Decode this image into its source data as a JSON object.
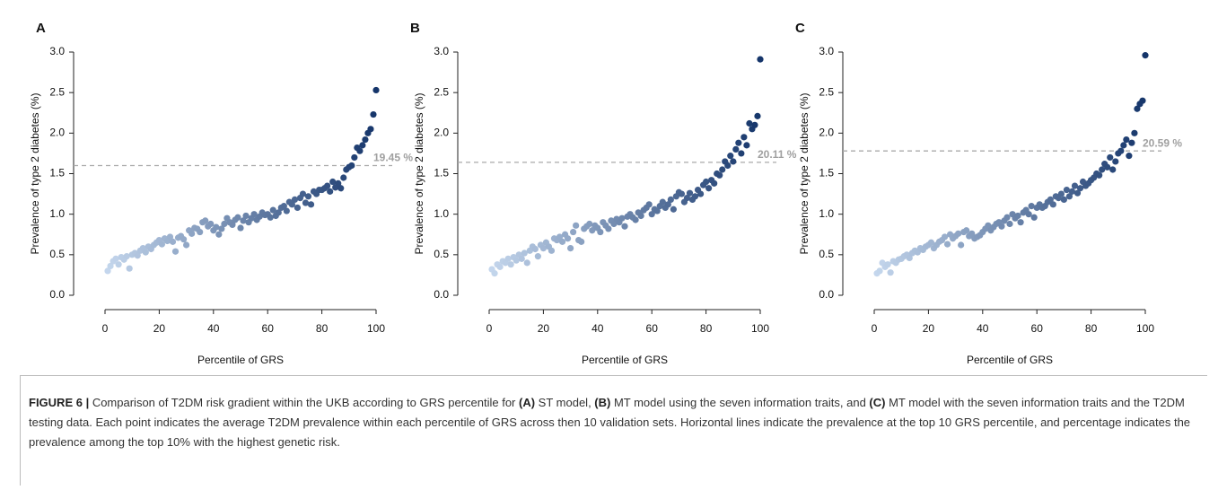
{
  "chart_data": [
    {
      "type": "scatter",
      "panel_label": "A",
      "xlabel": "Percentile of GRS",
      "ylabel": "Prevalence of type 2 diabetes (%)",
      "xlim": [
        0,
        100
      ],
      "ylim": [
        0,
        3
      ],
      "xticks": [
        0,
        20,
        40,
        60,
        80,
        100
      ],
      "yticks": [
        {
          "value": 0,
          "label": "0.0"
        },
        0.5,
        {
          "value": 1,
          "label": "1.0"
        },
        1.5,
        {
          "value": 2,
          "label": "2.0"
        },
        2.5,
        {
          "value": 3,
          "label": "3.0"
        }
      ],
      "color_scale": [
        "#c6d8ee",
        "#15356a"
      ],
      "reference_y": 1.6,
      "reference_label": "19.45 %",
      "x": [
        1,
        2,
        3,
        4,
        5,
        6,
        7,
        8,
        9,
        10,
        11,
        12,
        13,
        14,
        15,
        16,
        17,
        18,
        19,
        20,
        21,
        22,
        23,
        24,
        25,
        26,
        27,
        28,
        29,
        30,
        31,
        32,
        33,
        34,
        35,
        36,
        37,
        38,
        39,
        40,
        41,
        42,
        43,
        44,
        45,
        46,
        47,
        48,
        49,
        50,
        51,
        52,
        53,
        54,
        55,
        56,
        57,
        58,
        59,
        60,
        61,
        62,
        63,
        64,
        65,
        66,
        67,
        68,
        69,
        70,
        71,
        72,
        73,
        74,
        75,
        76,
        77,
        78,
        79,
        80,
        81,
        82,
        83,
        84,
        85,
        86,
        87,
        88,
        89,
        90,
        91,
        92,
        93,
        94,
        95,
        96,
        97,
        98,
        99,
        100
      ],
      "values": [
        0.3,
        0.36,
        0.42,
        0.45,
        0.38,
        0.47,
        0.44,
        0.48,
        0.33,
        0.5,
        0.52,
        0.49,
        0.55,
        0.58,
        0.53,
        0.6,
        0.57,
        0.62,
        0.65,
        0.68,
        0.63,
        0.7,
        0.67,
        0.72,
        0.66,
        0.54,
        0.71,
        0.73,
        0.69,
        0.62,
        0.8,
        0.76,
        0.83,
        0.82,
        0.78,
        0.9,
        0.92,
        0.85,
        0.88,
        0.8,
        0.84,
        0.75,
        0.82,
        0.88,
        0.95,
        0.9,
        0.87,
        0.93,
        0.96,
        0.83,
        0.92,
        0.98,
        0.9,
        0.95,
        1.0,
        0.93,
        0.97,
        1.02,
        0.99,
        1.0,
        0.96,
        1.05,
        0.98,
        1.02,
        1.08,
        1.1,
        1.04,
        1.15,
        1.12,
        1.18,
        1.08,
        1.2,
        1.25,
        1.14,
        1.22,
        1.12,
        1.28,
        1.25,
        1.3,
        1.3,
        1.32,
        1.35,
        1.28,
        1.4,
        1.33,
        1.38,
        1.32,
        1.45,
        1.55,
        1.58,
        1.6,
        1.7,
        1.82,
        1.78,
        1.85,
        1.92,
        2.0,
        2.05,
        2.23,
        2.53
      ]
    },
    {
      "type": "scatter",
      "panel_label": "B",
      "xlabel": "Percentile of GRS",
      "ylabel": "Prevalence of type 2 diabetes (%)",
      "xlim": [
        0,
        100
      ],
      "ylim": [
        0,
        3
      ],
      "xticks": [
        0,
        20,
        40,
        60,
        80,
        100
      ],
      "yticks": [
        {
          "value": 0,
          "label": "0.0"
        },
        0.5,
        {
          "value": 1,
          "label": "1.0"
        },
        1.5,
        {
          "value": 2,
          "label": "2.0"
        },
        2.5,
        {
          "value": 3,
          "label": "3.0"
        }
      ],
      "color_scale": [
        "#c6d8ee",
        "#15356a"
      ],
      "reference_y": 1.64,
      "reference_label": "20.11 %",
      "x": [
        1,
        2,
        3,
        4,
        5,
        6,
        7,
        8,
        9,
        10,
        11,
        12,
        13,
        14,
        15,
        16,
        17,
        18,
        19,
        20,
        21,
        22,
        23,
        24,
        25,
        26,
        27,
        28,
        29,
        30,
        31,
        32,
        33,
        34,
        35,
        36,
        37,
        38,
        39,
        40,
        41,
        42,
        43,
        44,
        45,
        46,
        47,
        48,
        49,
        50,
        51,
        52,
        53,
        54,
        55,
        56,
        57,
        58,
        59,
        60,
        61,
        62,
        63,
        64,
        65,
        66,
        67,
        68,
        69,
        70,
        71,
        72,
        73,
        74,
        75,
        76,
        77,
        78,
        79,
        80,
        81,
        82,
        83,
        84,
        85,
        86,
        87,
        88,
        89,
        90,
        91,
        92,
        93,
        94,
        95,
        96,
        97,
        98,
        99,
        100
      ],
      "values": [
        0.32,
        0.27,
        0.38,
        0.35,
        0.42,
        0.4,
        0.45,
        0.38,
        0.47,
        0.43,
        0.5,
        0.45,
        0.52,
        0.4,
        0.55,
        0.6,
        0.57,
        0.48,
        0.62,
        0.58,
        0.65,
        0.6,
        0.55,
        0.7,
        0.68,
        0.72,
        0.66,
        0.75,
        0.7,
        0.58,
        0.78,
        0.86,
        0.68,
        0.66,
        0.82,
        0.85,
        0.88,
        0.8,
        0.86,
        0.83,
        0.78,
        0.9,
        0.86,
        0.82,
        0.92,
        0.88,
        0.94,
        0.9,
        0.95,
        0.85,
        0.97,
        1.0,
        0.96,
        0.93,
        1.02,
        0.98,
        1.05,
        1.08,
        1.12,
        1.0,
        1.06,
        1.04,
        1.1,
        1.15,
        1.08,
        1.12,
        1.18,
        1.06,
        1.22,
        1.27,
        1.25,
        1.15,
        1.2,
        1.26,
        1.18,
        1.22,
        1.3,
        1.25,
        1.36,
        1.4,
        1.32,
        1.42,
        1.38,
        1.5,
        1.48,
        1.55,
        1.65,
        1.6,
        1.72,
        1.65,
        1.8,
        1.88,
        1.75,
        1.95,
        1.85,
        2.12,
        2.05,
        2.1,
        2.21,
        2.91
      ]
    },
    {
      "type": "scatter",
      "panel_label": "C",
      "xlabel": "Percentile of GRS",
      "ylabel": "Prevalence of type 2 diabetes (%)",
      "xlim": [
        0,
        100
      ],
      "ylim": [
        0,
        3
      ],
      "xticks": [
        0,
        20,
        40,
        60,
        80,
        100
      ],
      "yticks": [
        {
          "value": 0,
          "label": "0.0"
        },
        0.5,
        {
          "value": 1,
          "label": "1.0"
        },
        1.5,
        {
          "value": 2,
          "label": "2.0"
        },
        2.5,
        {
          "value": 3,
          "label": "3.0"
        }
      ],
      "color_scale": [
        "#c6d8ee",
        "#15356a"
      ],
      "reference_y": 1.78,
      "reference_label": "20.59 %",
      "x": [
        1,
        2,
        3,
        4,
        5,
        6,
        7,
        8,
        9,
        10,
        11,
        12,
        13,
        14,
        15,
        16,
        17,
        18,
        19,
        20,
        21,
        22,
        23,
        24,
        25,
        26,
        27,
        28,
        29,
        30,
        31,
        32,
        33,
        34,
        35,
        36,
        37,
        38,
        39,
        40,
        41,
        42,
        43,
        44,
        45,
        46,
        47,
        48,
        49,
        50,
        51,
        52,
        53,
        54,
        55,
        56,
        57,
        58,
        59,
        60,
        61,
        62,
        63,
        64,
        65,
        66,
        67,
        68,
        69,
        70,
        71,
        72,
        73,
        74,
        75,
        76,
        77,
        78,
        79,
        80,
        81,
        82,
        83,
        84,
        85,
        86,
        87,
        88,
        89,
        90,
        91,
        92,
        93,
        94,
        95,
        96,
        97,
        98,
        99,
        100
      ],
      "values": [
        0.27,
        0.3,
        0.4,
        0.35,
        0.38,
        0.28,
        0.42,
        0.4,
        0.44,
        0.45,
        0.48,
        0.5,
        0.46,
        0.52,
        0.55,
        0.53,
        0.58,
        0.56,
        0.6,
        0.62,
        0.65,
        0.58,
        0.62,
        0.66,
        0.68,
        0.72,
        0.63,
        0.75,
        0.7,
        0.73,
        0.76,
        0.62,
        0.78,
        0.8,
        0.73,
        0.76,
        0.7,
        0.72,
        0.74,
        0.78,
        0.82,
        0.86,
        0.8,
        0.84,
        0.88,
        0.9,
        0.85,
        0.92,
        0.96,
        0.88,
        1.0,
        0.95,
        0.98,
        0.9,
        1.02,
        1.05,
        1.0,
        1.1,
        0.96,
        1.08,
        1.12,
        1.08,
        1.1,
        1.15,
        1.18,
        1.12,
        1.22,
        1.2,
        1.25,
        1.18,
        1.3,
        1.22,
        1.28,
        1.35,
        1.26,
        1.32,
        1.4,
        1.35,
        1.38,
        1.42,
        1.45,
        1.5,
        1.48,
        1.55,
        1.62,
        1.58,
        1.7,
        1.55,
        1.65,
        1.75,
        1.78,
        1.85,
        1.92,
        1.72,
        1.88,
        2.0,
        2.3,
        2.36,
        2.4,
        2.96
      ]
    }
  ],
  "caption": {
    "figure": "FIGURE 6 |",
    "parts": [
      " Comparison of T2DM risk gradient within the UKB according to GRS percentile for ",
      "(A)",
      " ST model, ",
      "(B)",
      " MT model using the seven information traits, and ",
      "(C)",
      " MT model with the seven information traits and the T2DM testing data. Each point indicates the average T2DM prevalence within each percentile of GRS across then 10 validation sets. Horizontal lines indicate the prevalence at the top 10 GRS percentile, and percentage indicates the prevalence among the top 10% with the highest genetic risk."
    ]
  }
}
